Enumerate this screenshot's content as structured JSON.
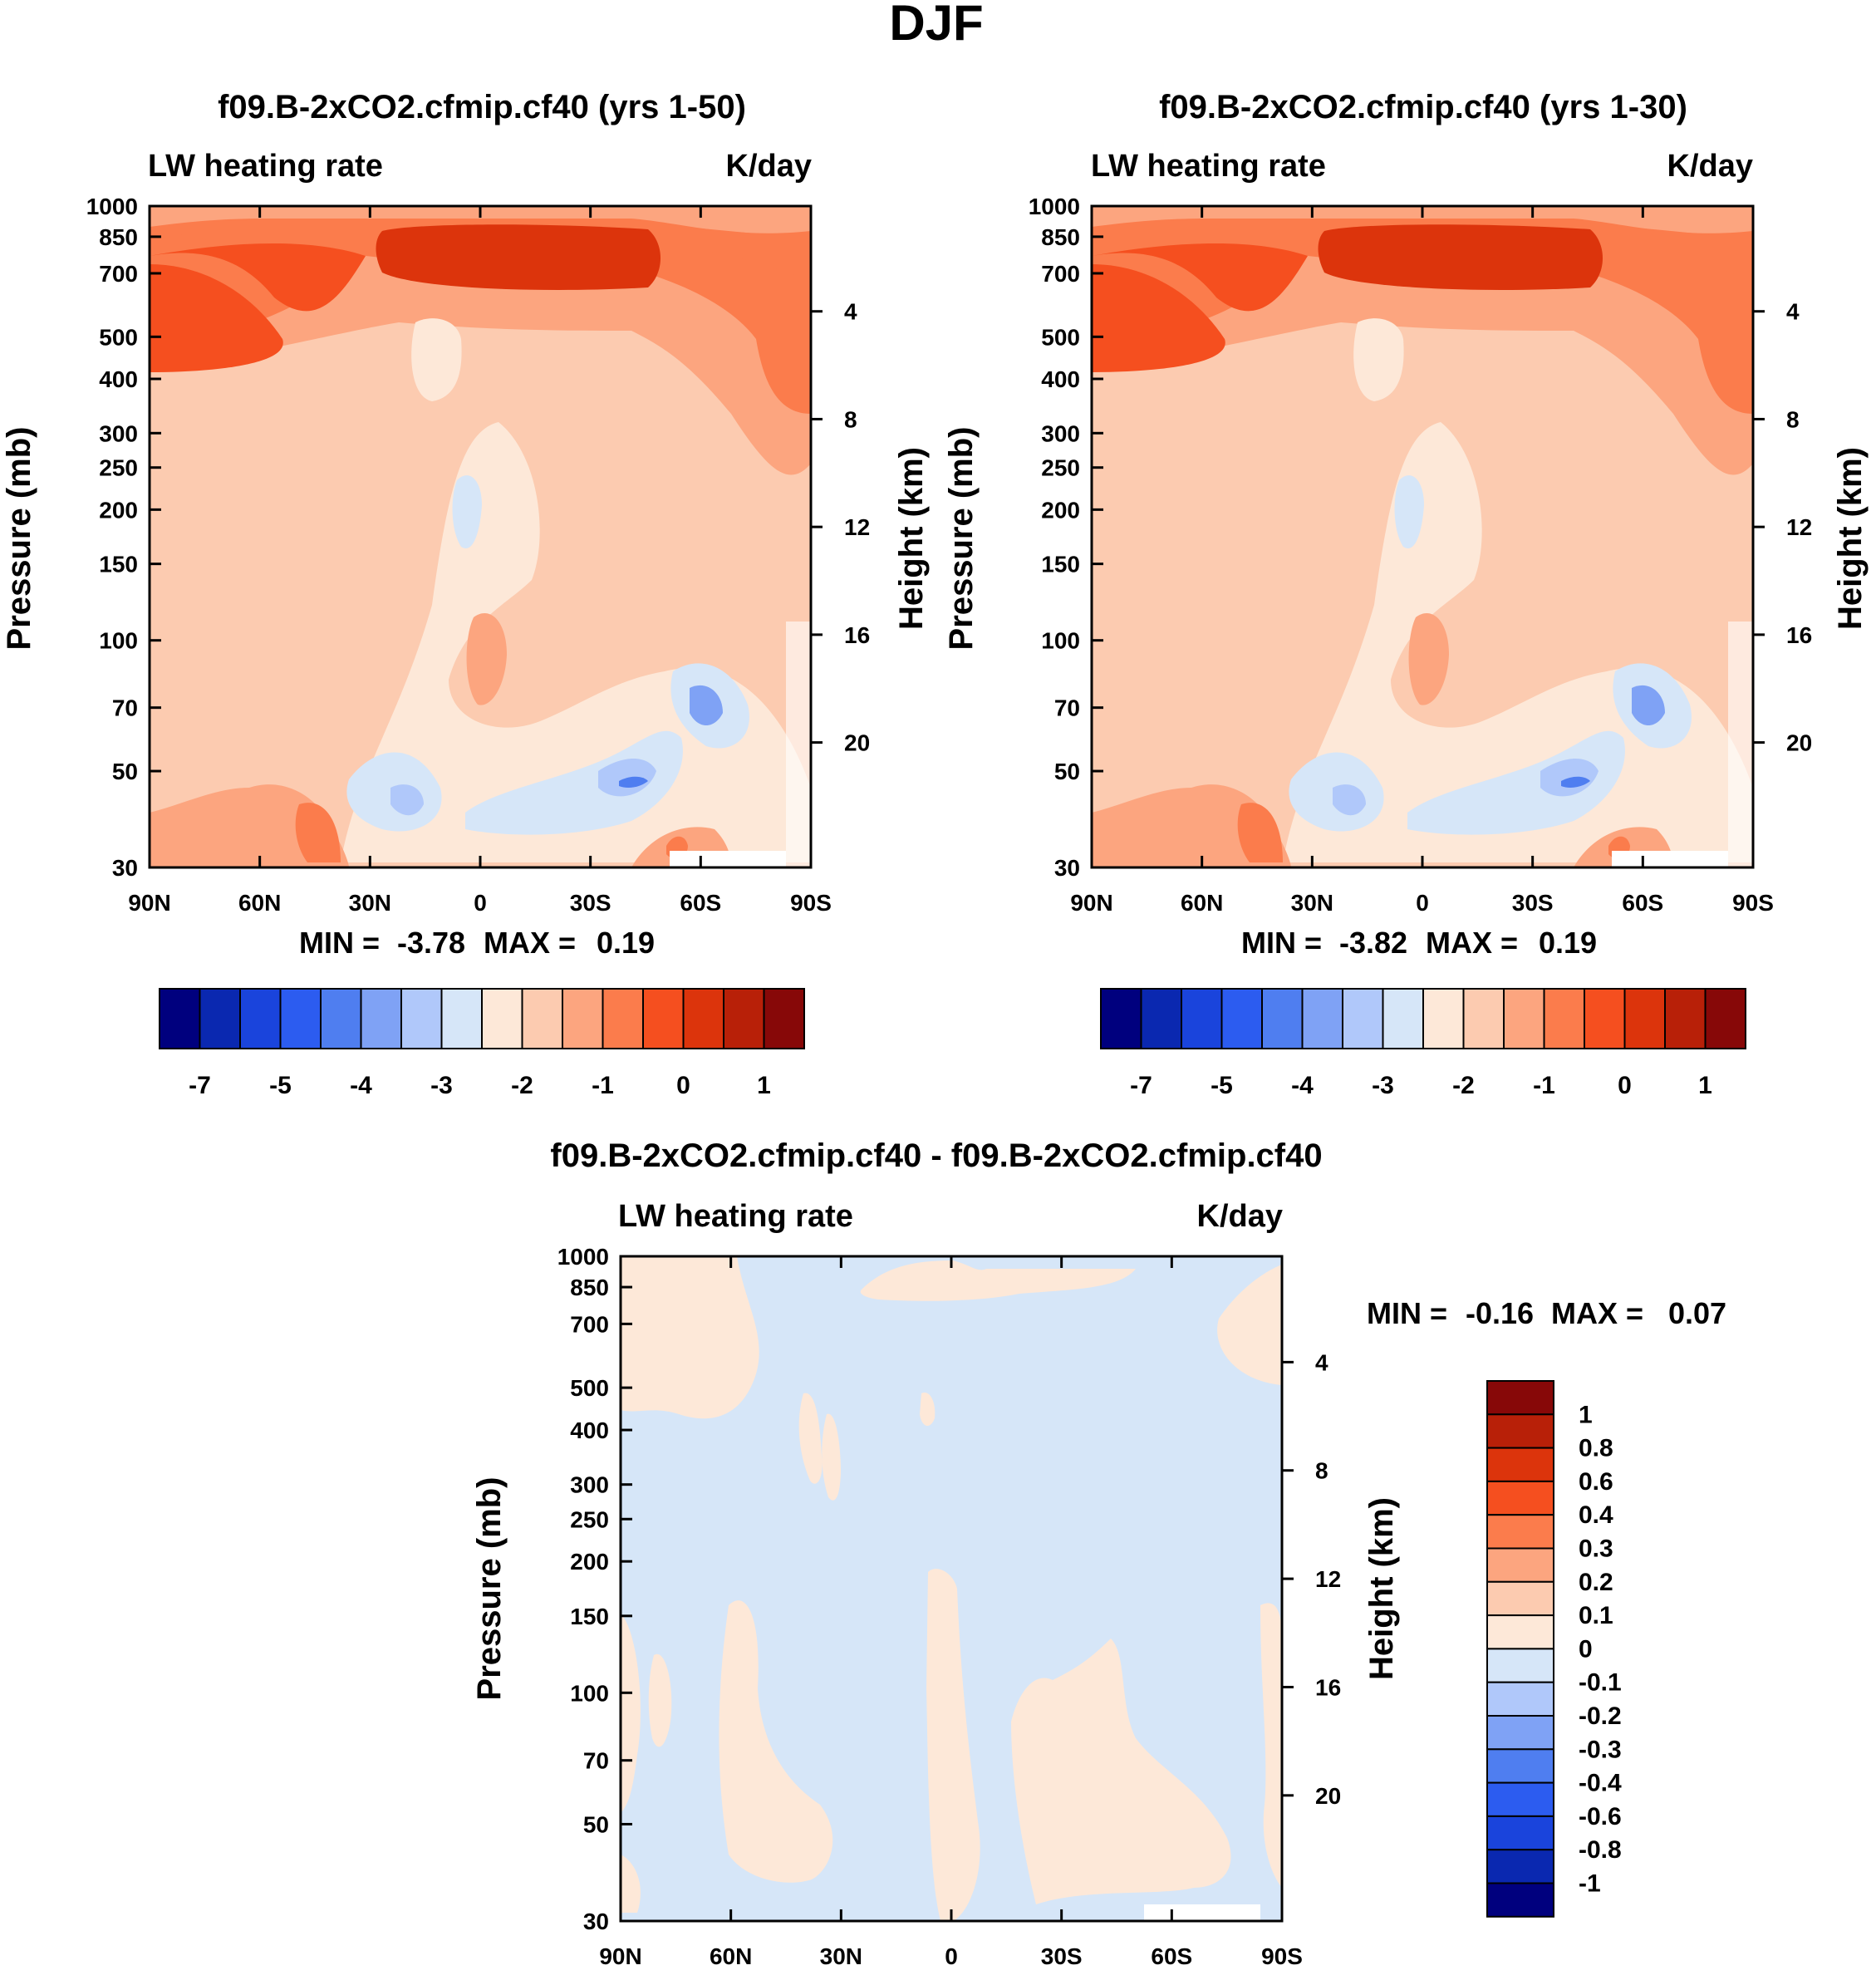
{
  "figure_title": "DJF",
  "chart_data": [
    {
      "type": "contour",
      "title": "f09.B-2xCO2.cfmip.cf40 (yrs 1-50)",
      "left_label": "LW heating rate",
      "right_label": "K/day",
      "xlabel": "",
      "ylabel": "Pressure (mb)",
      "y2label": "Height (km)",
      "x_ticks": [
        "90N",
        "60N",
        "30N",
        "0",
        "30S",
        "60S",
        "90S"
      ],
      "pressure_ticks": [
        "30",
        "50",
        "70",
        "100",
        "150",
        "200",
        "250",
        "300",
        "400",
        "500",
        "700",
        "850",
        "1000"
      ],
      "height_ticks": [
        "20",
        "16",
        "12",
        "8",
        "4"
      ],
      "ylim": [
        1000,
        30
      ],
      "stats": {
        "min_label": "MIN =",
        "min": "-3.78",
        "max_label": "MAX =",
        "max": "0.19"
      },
      "colorbar_labels": [
        "-7",
        "-5",
        "-4",
        "-3",
        "-2",
        "-1",
        "0",
        "1"
      ]
    },
    {
      "type": "contour",
      "title": "f09.B-2xCO2.cfmip.cf40 (yrs 1-30)",
      "left_label": "LW heating rate",
      "right_label": "K/day",
      "xlabel": "",
      "ylabel": "Pressure (mb)",
      "y2label": "Height (km)",
      "x_ticks": [
        "90N",
        "60N",
        "30N",
        "0",
        "30S",
        "60S",
        "90S"
      ],
      "pressure_ticks": [
        "30",
        "50",
        "70",
        "100",
        "150",
        "200",
        "250",
        "300",
        "400",
        "500",
        "700",
        "850",
        "1000"
      ],
      "height_ticks": [
        "20",
        "16",
        "12",
        "8",
        "4"
      ],
      "ylim": [
        1000,
        30
      ],
      "stats": {
        "min_label": "MIN =",
        "min": "-3.82",
        "max_label": "MAX =",
        "max": "0.19"
      },
      "colorbar_labels": [
        "-7",
        "-5",
        "-4",
        "-3",
        "-2",
        "-1",
        "0",
        "1"
      ]
    },
    {
      "type": "contour",
      "title": "f09.B-2xCO2.cfmip.cf40 - f09.B-2xCO2.cfmip.cf40",
      "left_label": "LW heating rate",
      "right_label": "K/day",
      "xlabel": "",
      "ylabel": "Pressure (mb)",
      "y2label": "Height (km)",
      "x_ticks": [
        "90N",
        "60N",
        "30N",
        "0",
        "30S",
        "60S",
        "90S"
      ],
      "pressure_ticks": [
        "30",
        "50",
        "70",
        "100",
        "150",
        "200",
        "250",
        "300",
        "400",
        "500",
        "700",
        "850",
        "1000"
      ],
      "height_ticks": [
        "20",
        "16",
        "12",
        "8",
        "4"
      ],
      "ylim": [
        1000,
        30
      ],
      "stats": {
        "min_label": "MIN =",
        "min": "-0.16",
        "max_label": "MAX =",
        "max": "0.07"
      },
      "colorbar_labels": [
        "1",
        "0.8",
        "0.6",
        "0.4",
        "0.3",
        "0.2",
        "0.1",
        "0",
        "-0.1",
        "-0.2",
        "-0.3",
        "-0.4",
        "-0.6",
        "-0.8",
        "-1"
      ]
    }
  ],
  "colors": {
    "palette": [
      "#00007e",
      "#0a28b0",
      "#1a44dc",
      "#2c5cf0",
      "#4f7ef0",
      "#7fa2f5",
      "#b0c8fa",
      "#d6e6f8",
      "#fde8d8",
      "#fccbb0",
      "#fca57f",
      "#fb7c4c",
      "#f54f1f",
      "#dc340c",
      "#b82008",
      "#870808"
    ]
  }
}
